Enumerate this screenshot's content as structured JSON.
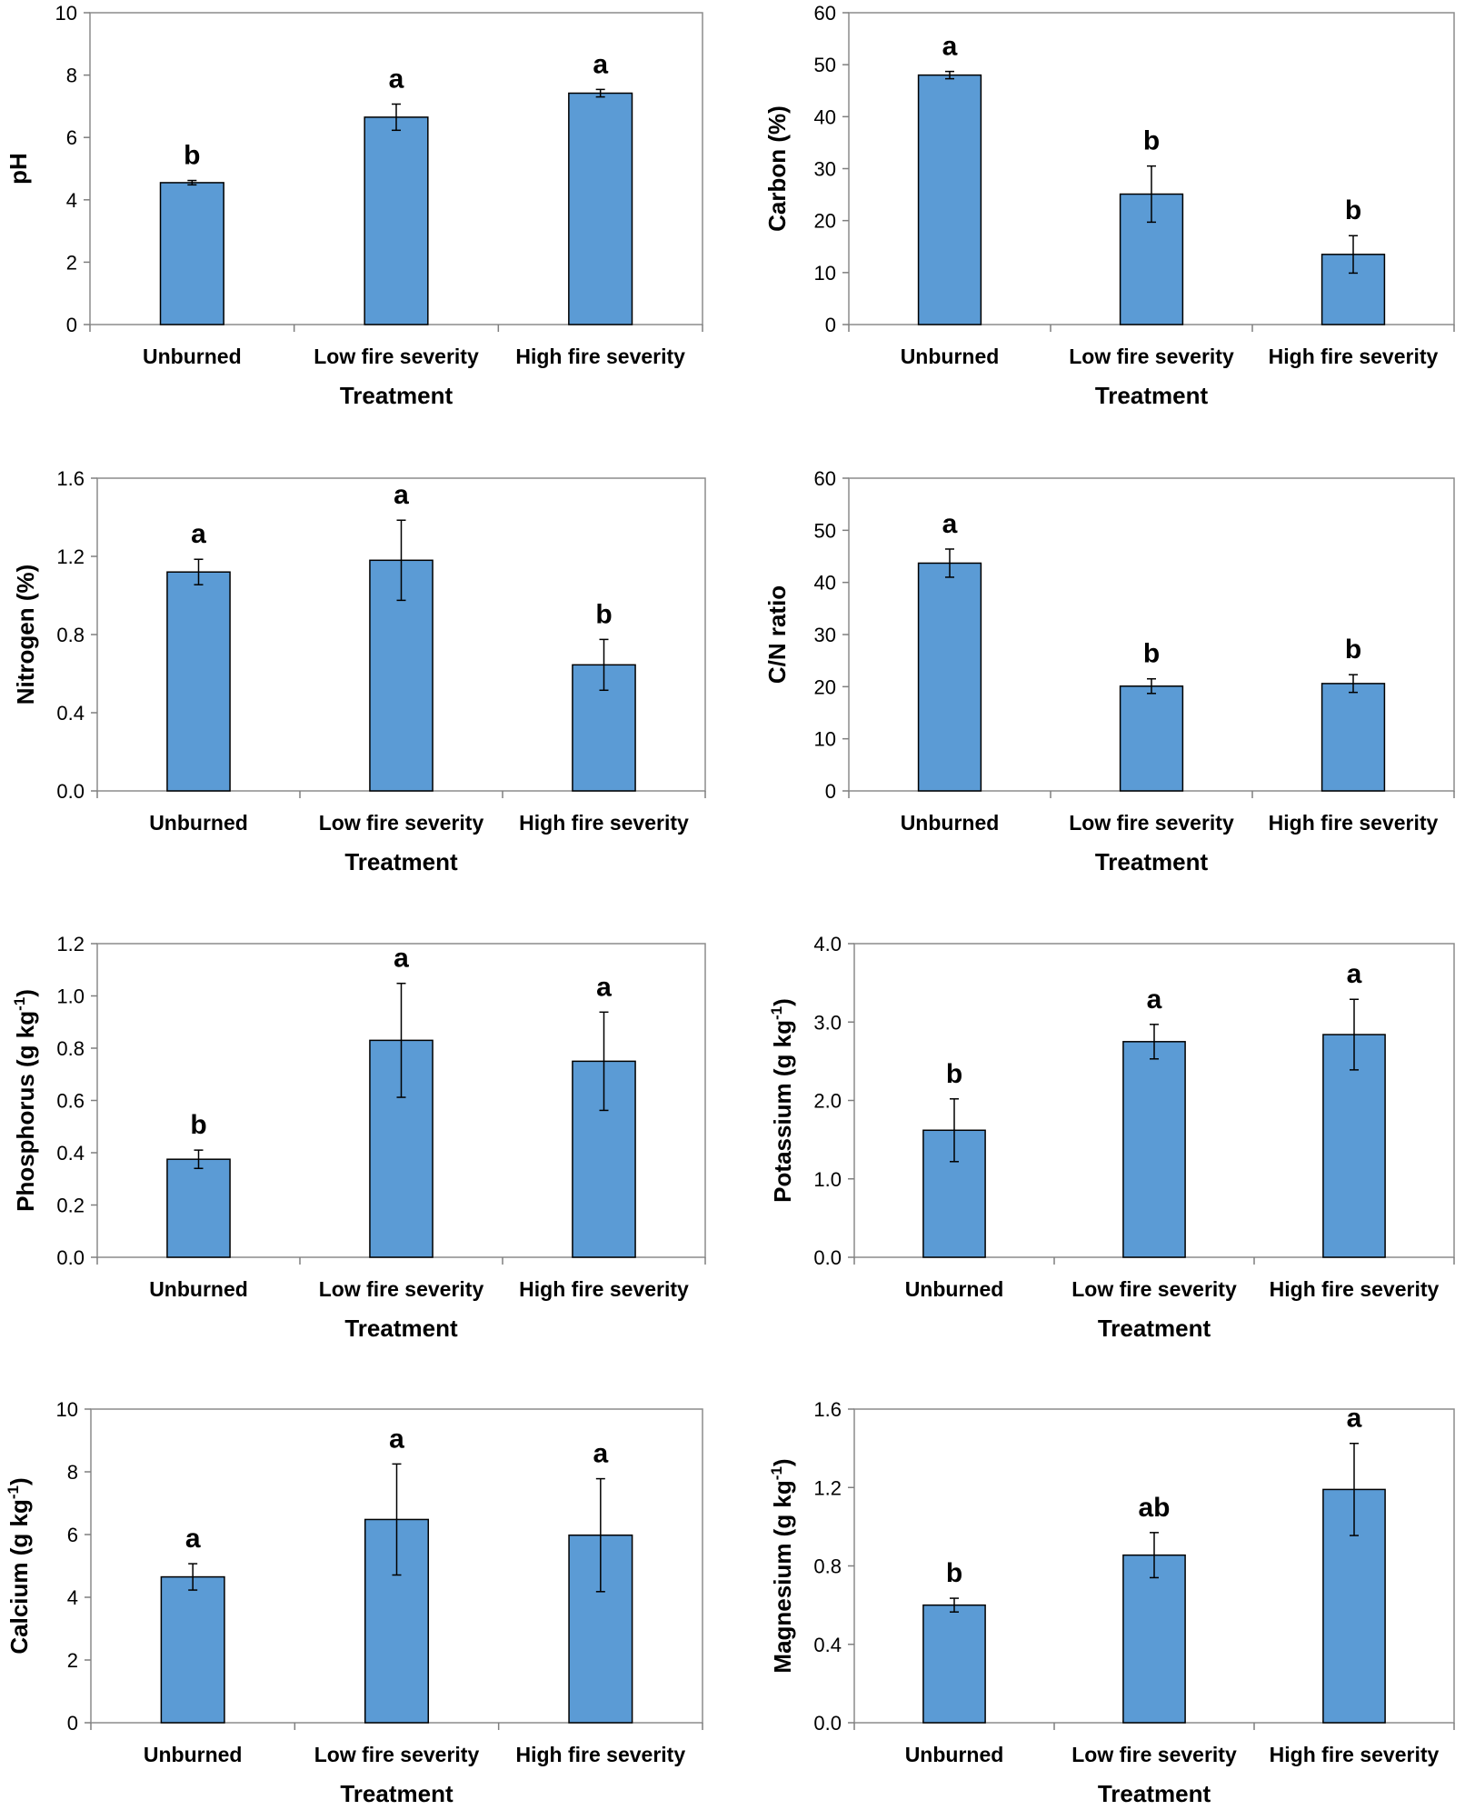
{
  "chart_data": [
    {
      "type": "bar",
      "categories": [
        "Unburned",
        "Low fire severity",
        "High fire severity"
      ],
      "values": [
        4.55,
        6.65,
        7.42
      ],
      "errors": [
        0.07,
        0.42,
        0.12
      ],
      "letters": [
        "b",
        "a",
        "a"
      ],
      "ylabel": "pH",
      "ylabel_sup": "",
      "xlabel": "Treatment",
      "ylim": [
        0,
        10
      ],
      "ticks": [
        "0",
        "2",
        "4",
        "6",
        "8",
        "10"
      ],
      "color": "#5B9BD5"
    },
    {
      "type": "bar",
      "categories": [
        "Unburned",
        "Low fire severity",
        "High fire severity"
      ],
      "values": [
        48.0,
        25.1,
        13.5
      ],
      "errors": [
        0.7,
        5.4,
        3.6
      ],
      "letters": [
        "a",
        "b",
        "b"
      ],
      "ylabel": "Carbon (%)",
      "ylabel_sup": "",
      "xlabel": "Treatment",
      "ylim": [
        0,
        60
      ],
      "ticks": [
        "0",
        "10",
        "20",
        "30",
        "40",
        "50",
        "60"
      ],
      "color": "#5B9BD5"
    },
    {
      "type": "bar",
      "categories": [
        "Unburned",
        "Low fire severity",
        "High fire severity"
      ],
      "values": [
        1.12,
        1.18,
        0.645
      ],
      "errors": [
        0.065,
        0.205,
        0.13
      ],
      "letters": [
        "a",
        "a",
        "b"
      ],
      "ylabel": "Nitrogen (%)",
      "ylabel_sup": "",
      "xlabel": "Treatment",
      "ylim": [
        0,
        1.6
      ],
      "ticks": [
        "0.0",
        "0.4",
        "0.8",
        "1.2",
        "1.6"
      ],
      "color": "#5B9BD5"
    },
    {
      "type": "bar",
      "categories": [
        "Unburned",
        "Low fire severity",
        "High fire severity"
      ],
      "values": [
        43.7,
        20.1,
        20.6
      ],
      "errors": [
        2.7,
        1.4,
        1.7
      ],
      "letters": [
        "a",
        "b",
        "b"
      ],
      "ylabel": "C/N ratio",
      "ylabel_sup": "",
      "xlabel": "Treatment",
      "ylim": [
        0,
        60
      ],
      "ticks": [
        "0",
        "10",
        "20",
        "30",
        "40",
        "50",
        "60"
      ],
      "color": "#5B9BD5"
    },
    {
      "type": "bar",
      "categories": [
        "Unburned",
        "Low fire severity",
        "High fire severity"
      ],
      "values": [
        0.375,
        0.83,
        0.75
      ],
      "errors": [
        0.035,
        0.218,
        0.188
      ],
      "letters": [
        "b",
        "a",
        "a"
      ],
      "ylabel": "Phosphorus (g kg",
      "ylabel_sup": "-1",
      "ylabel_end": ")",
      "xlabel": "Treatment",
      "ylim": [
        0,
        1.2
      ],
      "ticks": [
        "0.0",
        "0.2",
        "0.4",
        "0.6",
        "0.8",
        "1.0",
        "1.2"
      ],
      "color": "#5B9BD5"
    },
    {
      "type": "bar",
      "categories": [
        "Unburned",
        "Low fire severity",
        "High fire severity"
      ],
      "values": [
        1.62,
        2.75,
        2.84
      ],
      "errors": [
        0.4,
        0.22,
        0.45
      ],
      "letters": [
        "b",
        "a",
        "a"
      ],
      "ylabel": "Potassium (g kg",
      "ylabel_sup": "-1",
      "ylabel_end": ")",
      "xlabel": "Treatment",
      "ylim": [
        0,
        4.0
      ],
      "ticks": [
        "0.0",
        "1.0",
        "2.0",
        "3.0",
        "4.0"
      ],
      "color": "#5B9BD5"
    },
    {
      "type": "bar",
      "categories": [
        "Unburned",
        "Low fire severity",
        "High fire severity"
      ],
      "values": [
        4.65,
        6.48,
        5.98
      ],
      "errors": [
        0.42,
        1.77,
        1.8
      ],
      "letters": [
        "a",
        "a",
        "a"
      ],
      "ylabel": "Calcium (g kg",
      "ylabel_sup": "-1",
      "ylabel_end": ")",
      "xlabel": "Treatment",
      "ylim": [
        0,
        10
      ],
      "ticks": [
        "0",
        "2",
        "4",
        "6",
        "8",
        "10"
      ],
      "color": "#5B9BD5"
    },
    {
      "type": "bar",
      "categories": [
        "Unburned",
        "Low fire severity",
        "High fire severity"
      ],
      "values": [
        0.6,
        0.855,
        1.19
      ],
      "errors": [
        0.035,
        0.115,
        0.235
      ],
      "letters": [
        "b",
        "ab",
        "a"
      ],
      "ylabel": "Magnesium (g kg",
      "ylabel_sup": "-1",
      "ylabel_end": ")",
      "xlabel": "Treatment",
      "ylim": [
        0,
        1.6
      ],
      "ticks": [
        "0.0",
        "0.4",
        "0.8",
        "1.2",
        "1.6"
      ],
      "color": "#5B9BD5"
    }
  ]
}
